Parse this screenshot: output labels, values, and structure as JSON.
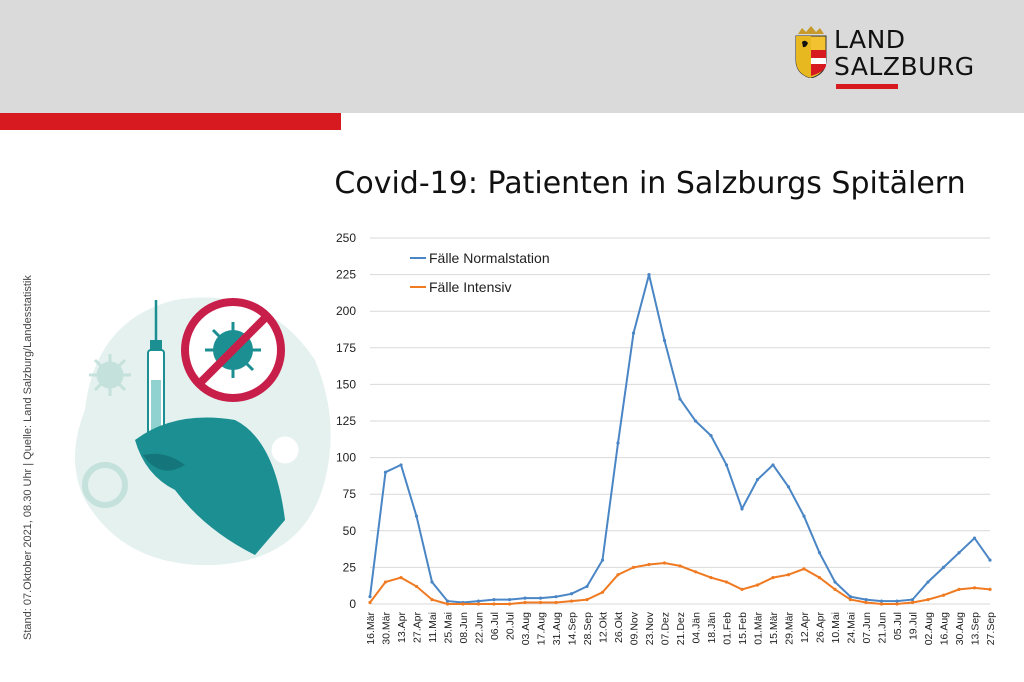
{
  "brand": {
    "line1": "LAND",
    "line2": "SALZBURG",
    "accent": "#d71920"
  },
  "title": "Covid-19: Patienten in Salzburgs Spitälern",
  "source": "Stand: 07.Oktober 2021, 08.30 Uhr  |  Quelle: Land Salzburg/Landesstatistik",
  "illustration": {
    "icon": "vaccine-syringe-hand-no-virus"
  },
  "chart_data": {
    "type": "line",
    "ylim": [
      0,
      250
    ],
    "yticks": [
      0,
      25,
      50,
      75,
      100,
      125,
      150,
      175,
      200,
      225,
      250
    ],
    "grid": true,
    "legend_position": "top-left",
    "categories": [
      "16.Mär",
      "30.Mär",
      "13.Apr",
      "27.Apr",
      "11.Mai",
      "25.Mai",
      "08.Jun",
      "22.Jun",
      "06.Jul",
      "20.Jul",
      "03.Aug",
      "17.Aug",
      "31.Aug",
      "14.Sep",
      "28.Sep",
      "12.Okt",
      "26.Okt",
      "09.Nov",
      "23.Nov",
      "07.Dez",
      "21.Dez",
      "04.Jän",
      "18.Jän",
      "01.Feb",
      "15.Feb",
      "01.Mär",
      "15.Mär",
      "29.Mär",
      "12.Apr",
      "26.Apr",
      "10.Mai",
      "24.Mai",
      "07.Jun",
      "21.Jun",
      "05.Jul",
      "19.Jul",
      "02.Aug",
      "16.Aug",
      "30.Aug",
      "13.Sep",
      "27.Sep"
    ],
    "series": [
      {
        "name": "Fälle Normalstation",
        "color": "#4a86c5",
        "values": [
          5,
          90,
          95,
          60,
          15,
          2,
          1,
          2,
          3,
          3,
          4,
          4,
          5,
          7,
          12,
          30,
          110,
          185,
          225,
          180,
          140,
          125,
          115,
          95,
          65,
          85,
          95,
          80,
          60,
          35,
          15,
          5,
          3,
          2,
          2,
          3,
          15,
          25,
          35,
          45,
          30
        ]
      },
      {
        "name": "Fälle Intensiv",
        "color": "#f07a22",
        "values": [
          1,
          15,
          18,
          12,
          3,
          0,
          0,
          0,
          0,
          0,
          1,
          1,
          1,
          2,
          3,
          8,
          20,
          25,
          27,
          28,
          26,
          22,
          18,
          15,
          10,
          13,
          18,
          20,
          24,
          18,
          10,
          3,
          1,
          0,
          0,
          1,
          3,
          6,
          10,
          11,
          10
        ]
      }
    ]
  }
}
